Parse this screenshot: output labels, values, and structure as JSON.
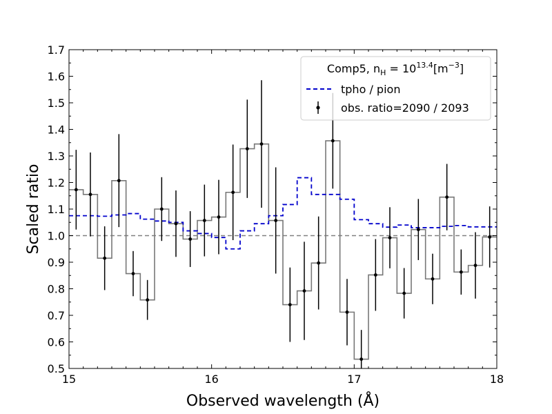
{
  "chart_data": {
    "type": "line",
    "xlabel": "Observed wavelength (Å)",
    "ylabel": "Scaled ratio",
    "xlim": [
      15,
      18
    ],
    "ylim": [
      0.5,
      1.7
    ],
    "x_ticks": [
      "15",
      "16",
      "17",
      "18"
    ],
    "y_ticks": [
      "0.5",
      "0.6",
      "0.7",
      "0.8",
      "0.9",
      "1.0",
      "1.1",
      "1.2",
      "1.3",
      "1.4",
      "1.5",
      "1.6",
      "1.7"
    ],
    "reference_line": 1.0,
    "legend": {
      "title_main": "Comp5, n",
      "title_sub": "H",
      "title_eq": " = 10",
      "title_exp": "13.4",
      "title_unit": "[m",
      "title_unit_exp": "−3",
      "title_close": "]",
      "entries": [
        "tpho / pion",
        "obs. ratio=2090 / 2093"
      ],
      "location": "top-right"
    },
    "series": [
      {
        "name": "obs. ratio=2090 / 2093",
        "style": "step-with-errorbars",
        "color": "#777777",
        "x": [
          15.05,
          15.15,
          15.25,
          15.35,
          15.45,
          15.55,
          15.65,
          15.75,
          15.85,
          15.95,
          16.05,
          16.15,
          16.25,
          16.35,
          16.45,
          16.55,
          16.65,
          16.75,
          16.85,
          16.95,
          17.05,
          17.15,
          17.25,
          17.35,
          17.45,
          17.55,
          17.65,
          17.75,
          17.85,
          17.95
        ],
        "y": [
          1.173,
          1.155,
          0.915,
          1.207,
          0.857,
          0.758,
          1.1,
          1.045,
          0.987,
          1.057,
          1.07,
          1.163,
          1.327,
          1.345,
          1.057,
          0.74,
          0.792,
          0.897,
          1.357,
          0.712,
          0.535,
          0.852,
          0.992,
          0.783,
          1.023,
          0.837,
          1.145,
          0.863,
          0.888,
          0.995
        ],
        "yerr": [
          0.15,
          0.158,
          0.12,
          0.175,
          0.085,
          0.075,
          0.12,
          0.125,
          0.105,
          0.135,
          0.14,
          0.18,
          0.185,
          0.24,
          0.2,
          0.14,
          0.185,
          0.175,
          0.18,
          0.125,
          0.11,
          0.135,
          0.115,
          0.095,
          0.115,
          0.095,
          0.125,
          0.085,
          0.125,
          0.115
        ]
      },
      {
        "name": "tpho / pion",
        "style": "dashed-step",
        "color": "#0000cc",
        "x": [
          15.05,
          15.15,
          15.25,
          15.35,
          15.45,
          15.55,
          15.65,
          15.75,
          15.85,
          15.95,
          16.05,
          16.15,
          16.25,
          16.35,
          16.45,
          16.55,
          16.65,
          16.75,
          16.85,
          16.95,
          17.05,
          17.15,
          17.25,
          17.35,
          17.45,
          17.55,
          17.65,
          17.75,
          17.85,
          17.95
        ],
        "y": [
          1.075,
          1.075,
          1.073,
          1.078,
          1.083,
          1.062,
          1.055,
          1.05,
          1.018,
          1.008,
          0.993,
          0.95,
          1.018,
          1.045,
          1.075,
          1.117,
          1.218,
          1.155,
          1.155,
          1.137,
          1.06,
          1.045,
          1.032,
          1.04,
          1.03,
          1.03,
          1.035,
          1.038,
          1.033,
          1.033
        ]
      }
    ]
  }
}
